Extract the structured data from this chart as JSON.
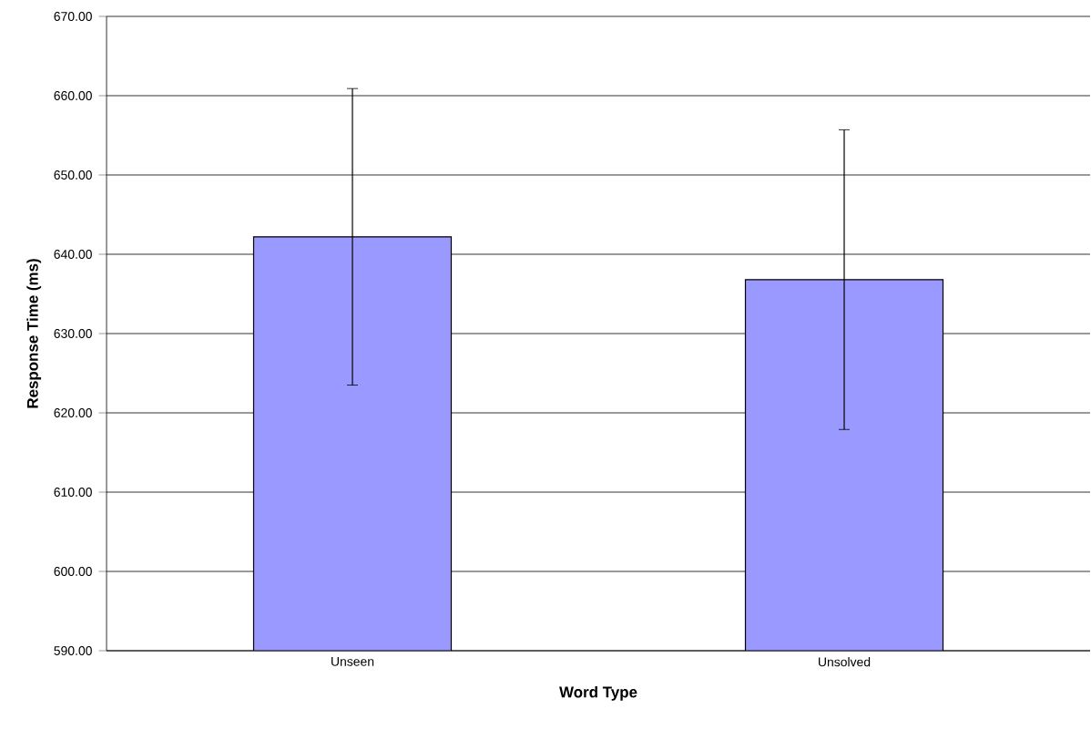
{
  "chart_data": {
    "type": "bar",
    "xlabel": "Word Type",
    "ylabel": "Response Time (ms)",
    "categories": [
      "Unseen",
      "Unsolved"
    ],
    "values": [
      642.2,
      636.8
    ],
    "errors": [
      18.7,
      18.9
    ],
    "color": "#9999ff",
    "ylim": [
      590,
      670
    ],
    "yticks": [
      {
        "value": 590,
        "label": "590.00"
      },
      {
        "value": 600,
        "label": "600.00"
      },
      {
        "value": 610,
        "label": "610.00"
      },
      {
        "value": 620,
        "label": "620.00"
      },
      {
        "value": 630,
        "label": "630.00"
      },
      {
        "value": 640,
        "label": "640.00"
      },
      {
        "value": 650,
        "label": "650.00"
      },
      {
        "value": 660,
        "label": "660.00"
      },
      {
        "value": 670,
        "label": "670.00"
      }
    ],
    "grid": "y"
  }
}
